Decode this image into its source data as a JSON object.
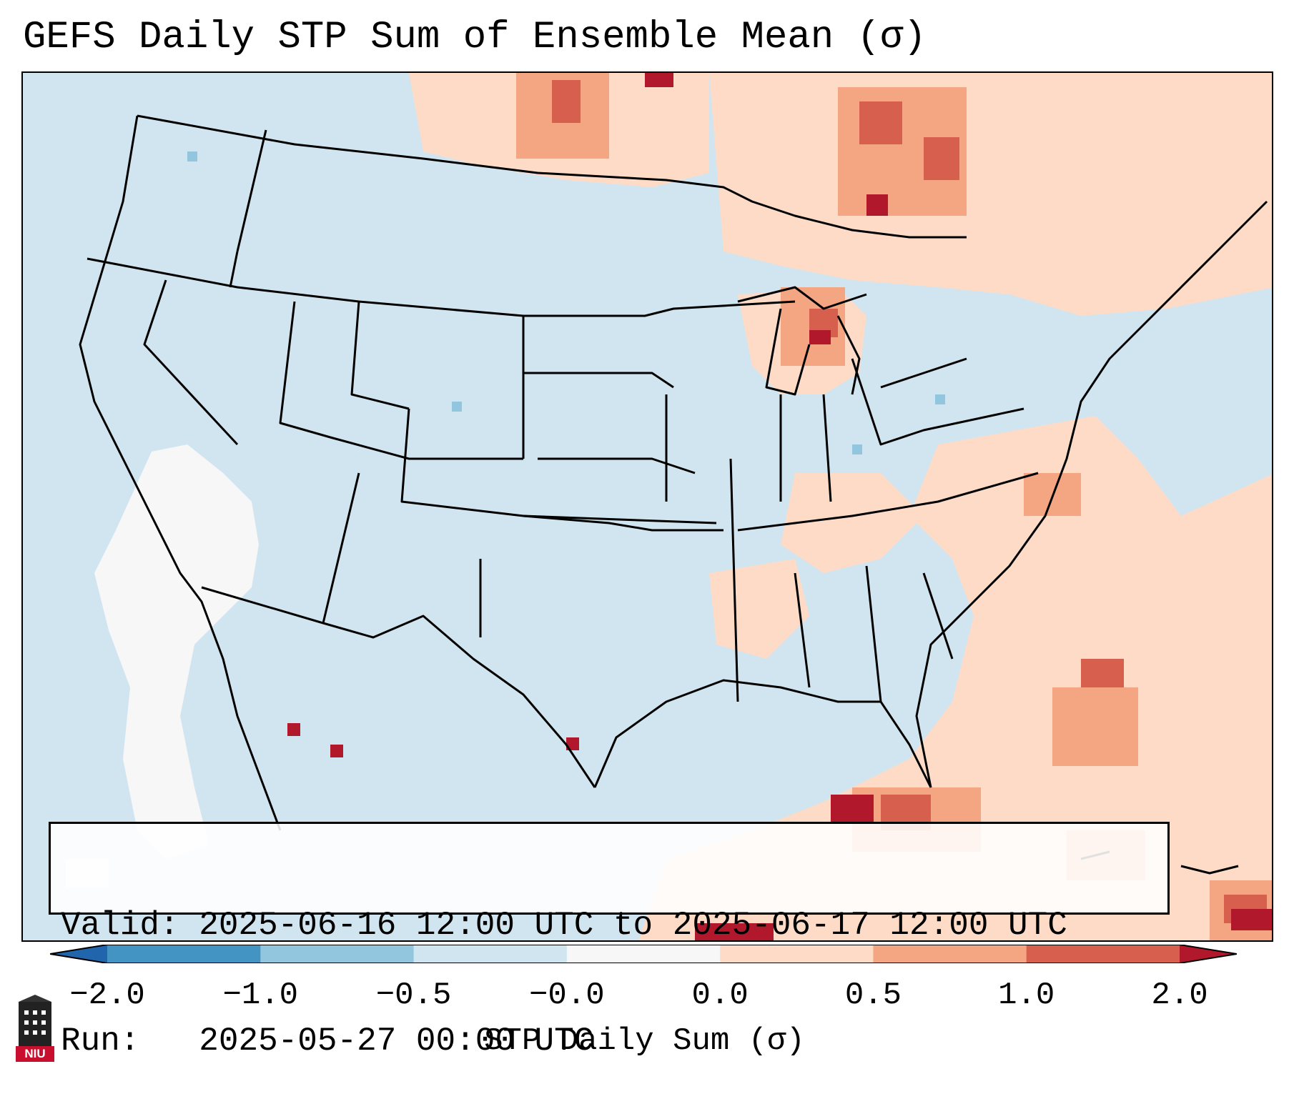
{
  "title": "GEFS Daily STP Sum of Ensemble Mean (σ)",
  "info": {
    "valid_label": "Valid:",
    "valid_value": "2025-06-16 12:00 UTC to 2025-06-17 12:00 UTC",
    "run_label": "Run:",
    "run_value": "2025-05-27 00:00 UTC"
  },
  "colorbar": {
    "title": "STP Daily Sum (σ)",
    "ticks": [
      "−2.0",
      "−1.0",
      "−0.5",
      "−0.0",
      "0.0",
      "0.5",
      "1.0",
      "2.0"
    ],
    "colors": [
      "#4393c3",
      "#92c5de",
      "#d1e5f0",
      "#f7f7f7",
      "#fddbc7",
      "#f4a582",
      "#d6604d"
    ],
    "extend_low": "#2166ac",
    "extend_high": "#b2182b"
  },
  "logo": {
    "text": "NIU"
  },
  "colors": {
    "ocean": "#d1e5f0",
    "light_red": "#fddbc7",
    "mid_red": "#f4a582",
    "red": "#d6604d",
    "dark_red": "#b2182b",
    "white": "#f7f7f7",
    "blue": "#92c5de"
  }
}
